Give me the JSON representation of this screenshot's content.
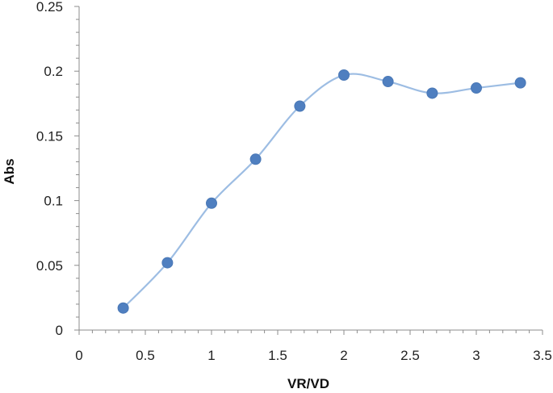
{
  "chart_data": {
    "type": "scatter",
    "title": "",
    "xlabel": "VR/VD",
    "ylabel": "Abs",
    "xlim": [
      0,
      3.5
    ],
    "ylim": [
      0,
      0.25
    ],
    "xticks": [
      0,
      0.5,
      1,
      1.5,
      2,
      2.5,
      3,
      3.5
    ],
    "xtick_labels": [
      "0",
      "0.5",
      "1",
      "1.5",
      "2",
      "2.5",
      "3",
      "3.5"
    ],
    "yticks": [
      0,
      0.05,
      0.1,
      0.15,
      0.2,
      0.25
    ],
    "ytick_labels": [
      "0",
      "0.05",
      "0.1",
      "0.15",
      "0.2",
      "0.25"
    ],
    "grid": false,
    "legend": "none",
    "smoothed_line": true,
    "line_color": "#9dbde3",
    "marker_color": "#4f7fc0",
    "series": [
      {
        "x": [
          0.333,
          0.667,
          1.0,
          1.333,
          1.667,
          2.0,
          2.333,
          2.667,
          3.0,
          3.333
        ],
        "y": [
          0.017,
          0.052,
          0.098,
          0.132,
          0.173,
          0.197,
          0.192,
          0.183,
          0.187,
          0.191
        ]
      }
    ]
  }
}
